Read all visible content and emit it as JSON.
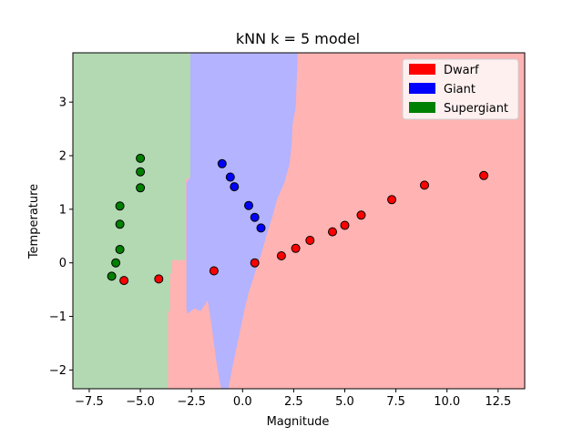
{
  "chart_data": {
    "type": "scatter",
    "title": "kNN k = 5 model",
    "xlabel": "Magnitude",
    "ylabel": "Temperature",
    "xlim": [
      -8.3,
      13.8
    ],
    "ylim": [
      -2.35,
      3.92
    ],
    "xticks": [
      -7.5,
      -5.0,
      -2.5,
      0.0,
      2.5,
      5.0,
      7.5,
      10.0,
      12.5
    ],
    "xtick_labels": [
      "−7.5",
      "−5.0",
      "−2.5",
      "0.0",
      "2.5",
      "5.0",
      "7.5",
      "10.0",
      "12.5"
    ],
    "yticks": [
      -2,
      -1,
      0,
      1,
      2,
      3
    ],
    "ytick_labels": [
      "−2",
      "−1",
      "0",
      "1",
      "2",
      "3"
    ],
    "grid": false,
    "legend_position": "top-right",
    "series": [
      {
        "name": "Dwarf",
        "color": "#ff0000",
        "region_color": "#ffb3b3",
        "points": [
          {
            "x": -5.8,
            "y": -0.33
          },
          {
            "x": -4.1,
            "y": -0.3
          },
          {
            "x": -1.4,
            "y": -0.15
          },
          {
            "x": 0.6,
            "y": 0.0
          },
          {
            "x": 1.9,
            "y": 0.13
          },
          {
            "x": 2.6,
            "y": 0.27
          },
          {
            "x": 3.3,
            "y": 0.42
          },
          {
            "x": 4.4,
            "y": 0.58
          },
          {
            "x": 5.0,
            "y": 0.7
          },
          {
            "x": 5.8,
            "y": 0.89
          },
          {
            "x": 7.3,
            "y": 1.18
          },
          {
            "x": 8.9,
            "y": 1.45
          },
          {
            "x": 11.8,
            "y": 1.63
          }
        ]
      },
      {
        "name": "Giant",
        "color": "#0000ff",
        "region_color": "#b3b3ff",
        "points": [
          {
            "x": -1.0,
            "y": 1.85
          },
          {
            "x": -0.6,
            "y": 1.6
          },
          {
            "x": -0.4,
            "y": 1.42
          },
          {
            "x": 0.3,
            "y": 1.07
          },
          {
            "x": 0.6,
            "y": 0.85
          },
          {
            "x": 0.9,
            "y": 0.65
          }
        ]
      },
      {
        "name": "Supergiant",
        "color": "#008000",
        "region_color": "#b3d9b3",
        "points": [
          {
            "x": -5.0,
            "y": 1.95
          },
          {
            "x": -5.0,
            "y": 1.7
          },
          {
            "x": -5.0,
            "y": 1.4
          },
          {
            "x": -6.0,
            "y": 1.06
          },
          {
            "x": -6.0,
            "y": 0.72
          },
          {
            "x": -6.0,
            "y": 0.25
          },
          {
            "x": -6.2,
            "y": 0.0
          },
          {
            "x": -6.4,
            "y": -0.25
          }
        ]
      }
    ],
    "decision_regions": {
      "supergiant_polygon": [
        [
          -8.3,
          3.92
        ],
        [
          -2.55,
          3.92
        ],
        [
          -2.55,
          1.6
        ],
        [
          -2.8,
          1.55
        ],
        [
          -2.8,
          0.05
        ],
        [
          -3.45,
          0.05
        ],
        [
          -3.45,
          -0.2
        ],
        [
          -3.55,
          -0.2
        ],
        [
          -3.55,
          -0.9
        ],
        [
          -3.65,
          -0.9
        ],
        [
          -3.65,
          -2.35
        ],
        [
          -8.3,
          -2.35
        ]
      ],
      "giant_polygon": [
        [
          -2.55,
          3.92
        ],
        [
          2.7,
          3.92
        ],
        [
          2.6,
          2.9
        ],
        [
          2.45,
          2.6
        ],
        [
          2.4,
          2.2
        ],
        [
          2.3,
          1.85
        ],
        [
          2.05,
          1.5
        ],
        [
          1.7,
          1.2
        ],
        [
          1.45,
          0.85
        ],
        [
          1.2,
          0.55
        ],
        [
          0.9,
          0.15
        ],
        [
          0.6,
          -0.2
        ],
        [
          0.3,
          -0.55
        ],
        [
          0.05,
          -0.95
        ],
        [
          -0.25,
          -1.5
        ],
        [
          -0.5,
          -1.95
        ],
        [
          -0.7,
          -2.35
        ],
        [
          -1.05,
          -2.35
        ],
        [
          -1.3,
          -1.8
        ],
        [
          -1.5,
          -1.2
        ],
        [
          -1.7,
          -0.7
        ],
        [
          -2.05,
          -0.9
        ],
        [
          -2.35,
          -0.85
        ],
        [
          -2.7,
          -0.95
        ],
        [
          -2.75,
          -0.85
        ],
        [
          -2.75,
          1.5
        ],
        [
          -2.55,
          1.6
        ]
      ]
    }
  }
}
